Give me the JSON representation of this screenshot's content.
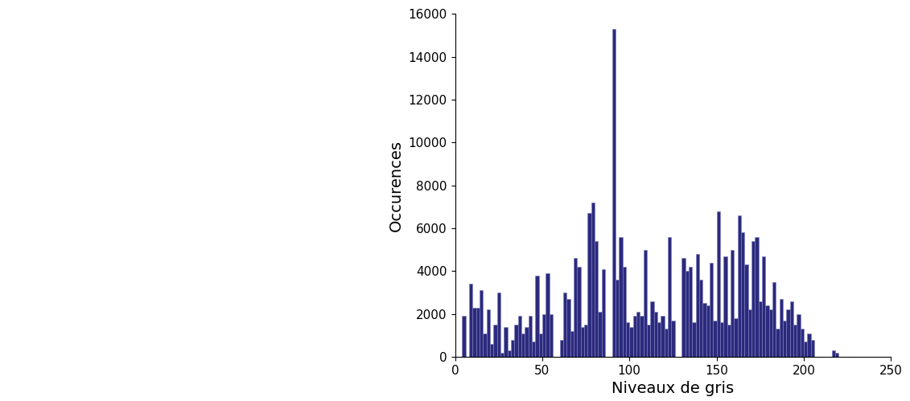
{
  "chart_data": {
    "type": "histogram",
    "x_label": "Niveaux de gris",
    "y_label": "Occurences",
    "bins": [
      4,
      6,
      8,
      10,
      12,
      14,
      16,
      18,
      20,
      22,
      24,
      26,
      28,
      30,
      32,
      34,
      36,
      38,
      40,
      42,
      44,
      46,
      48,
      50,
      52,
      54,
      56,
      58,
      60,
      62,
      64,
      66,
      68,
      70,
      72,
      74,
      76,
      78,
      80,
      82,
      84,
      86,
      88,
      90,
      92,
      94,
      96,
      98,
      100,
      102,
      104,
      106,
      108,
      110,
      112,
      114,
      116,
      118,
      120,
      122,
      124,
      126,
      128,
      130,
      132,
      134,
      136,
      138,
      140,
      142,
      144,
      146,
      148,
      150,
      152,
      154,
      156,
      158,
      160,
      162,
      164,
      166,
      168,
      170,
      172,
      174,
      176,
      178,
      180,
      182,
      184,
      186,
      188,
      190,
      192,
      194,
      196,
      198,
      200,
      202,
      204,
      206,
      208,
      210,
      212,
      214,
      216,
      218,
      220
    ],
    "counts": [
      1900,
      0,
      3400,
      2300,
      2300,
      3100,
      1100,
      2200,
      600,
      1500,
      3000,
      200,
      1400,
      300,
      800,
      1500,
      1900,
      1100,
      1400,
      1900,
      700,
      3800,
      1100,
      2000,
      3900,
      2000,
      0,
      0,
      800,
      3000,
      2700,
      1200,
      4600,
      4200,
      1400,
      1500,
      6700,
      7200,
      5400,
      2100,
      4100,
      0,
      0,
      15300,
      3600,
      5600,
      4200,
      1600,
      1400,
      1900,
      2100,
      1900,
      5000,
      1500,
      2600,
      2100,
      1600,
      1900,
      1300,
      5600,
      1700,
      0,
      0,
      4600,
      4000,
      4200,
      1600,
      4800,
      3600,
      2500,
      2400,
      4400,
      1700,
      6800,
      1600,
      4700,
      1500,
      5000,
      1800,
      6600,
      5800,
      4300,
      2200,
      5400,
      5600,
      2600,
      4700,
      2400,
      2200,
      3500,
      1300,
      2700,
      1700,
      2200,
      2600,
      1500,
      2000,
      1300,
      700,
      1100,
      800,
      0,
      0,
      0,
      0,
      0,
      300,
      200
    ],
    "color": "#2b2a7c",
    "xlim": [
      0,
      250
    ],
    "xticks": [
      0,
      50,
      100,
      150,
      200,
      250
    ],
    "ylim": [
      0,
      16000
    ],
    "yticks": [
      0,
      2000,
      4000,
      6000,
      8000,
      10000,
      12000,
      14000,
      16000
    ],
    "grid": false
  }
}
